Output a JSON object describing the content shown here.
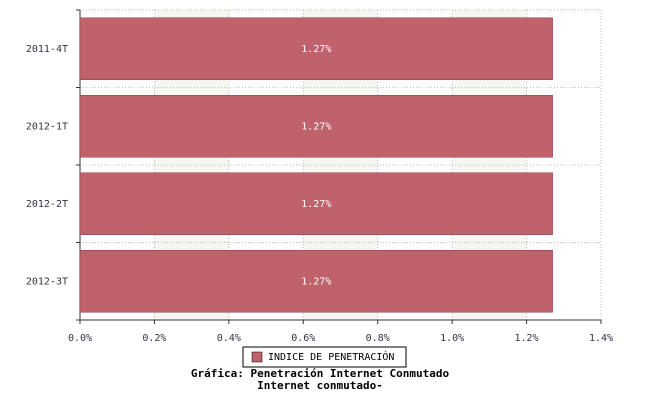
{
  "chart_data": {
    "type": "hbar",
    "title": "Gráfica: Penetración Internet Conmutado",
    "subtitle": "Internet conmutado-",
    "categories": [
      "2011-4T",
      "2012-1T",
      "2012-2T",
      "2012-3T"
    ],
    "series": [
      {
        "name": "INDICE DE PENETRACIÓN",
        "color": "#bf626b",
        "values": [
          1.27,
          1.27,
          1.27,
          1.27
        ],
        "value_labels": [
          "1.27%",
          "1.27%",
          "1.27%",
          "1.27%"
        ]
      }
    ],
    "xlim": [
      0,
      1.4
    ],
    "xticks": [
      {
        "value": 0,
        "label": "0.0%"
      },
      {
        "value": 0.2,
        "label": "0.2%"
      },
      {
        "value": 0.4,
        "label": "0.4%"
      },
      {
        "value": 0.6,
        "label": "0.6%"
      },
      {
        "value": 0.8,
        "label": "0.8%"
      },
      {
        "value": 1.0,
        "label": "1.0%"
      },
      {
        "value": 1.2,
        "label": "1.2%"
      },
      {
        "value": 1.4,
        "label": "1.4%"
      }
    ],
    "grid": true
  }
}
